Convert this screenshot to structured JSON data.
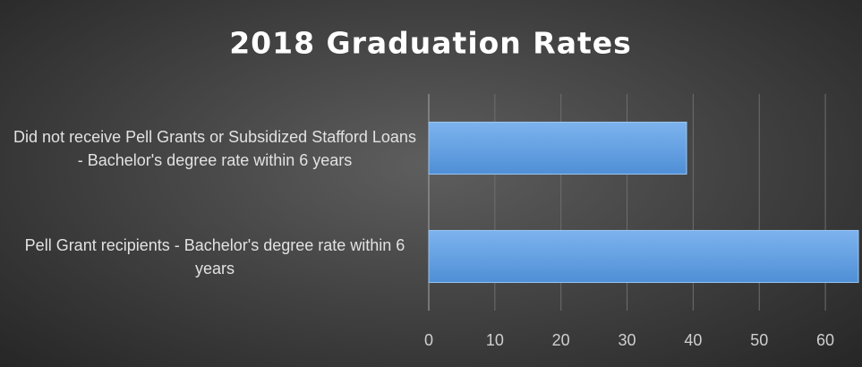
{
  "chart_data": {
    "type": "bar",
    "orientation": "horizontal",
    "title": "2018 Graduation Rates",
    "categories": [
      "Did not receive Pell Grants or Subsidized Stafford Loans - Bachelor's degree rate within 6 years",
      "Pell Grant recipients - Bachelor's degree rate within 6 years"
    ],
    "values": [
      39,
      65
    ],
    "color": "#5b9be0",
    "xlim": [
      0,
      65
    ],
    "xticks": [
      0,
      10,
      20,
      30,
      40,
      50,
      60
    ],
    "grid": true
  }
}
